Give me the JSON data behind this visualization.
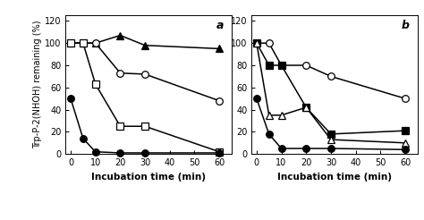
{
  "panel_a": {
    "label": "a",
    "x": [
      0,
      5,
      10,
      20,
      30,
      60
    ],
    "series": [
      {
        "marker": "^",
        "filled": true,
        "data": [
          100,
          100,
          100,
          107,
          98,
          95
        ]
      },
      {
        "marker": "o",
        "filled": false,
        "data": [
          100,
          100,
          100,
          73,
          72,
          48
        ]
      },
      {
        "marker": "s",
        "filled": false,
        "data": [
          100,
          100,
          63,
          25,
          25,
          2
        ]
      },
      {
        "marker": "o",
        "filled": true,
        "data": [
          50,
          14,
          2,
          1,
          1,
          1
        ]
      }
    ]
  },
  "panel_b": {
    "label": "b",
    "x": [
      0,
      5,
      10,
      20,
      30,
      60
    ],
    "series": [
      {
        "marker": "o",
        "filled": false,
        "data": [
          100,
          100,
          80,
          80,
          70,
          50
        ]
      },
      {
        "marker": "s",
        "filled": true,
        "data": [
          100,
          80,
          80,
          42,
          18,
          21
        ]
      },
      {
        "marker": "^",
        "filled": false,
        "data": [
          100,
          35,
          35,
          42,
          13,
          10
        ]
      },
      {
        "marker": "o",
        "filled": true,
        "data": [
          50,
          18,
          5,
          5,
          5,
          4
        ]
      }
    ]
  },
  "ylabel": "Trp-P-2(NHOH) remaining (%)",
  "xlabel": "Incubation time (min)",
  "xlim": [
    -2,
    65
  ],
  "ylim": [
    0,
    125
  ],
  "yticks": [
    0,
    20,
    40,
    60,
    80,
    100,
    120
  ],
  "xticks": [
    0,
    10,
    20,
    30,
    40,
    50,
    60
  ],
  "figsize": [
    4.74,
    2.46
  ],
  "dpi": 100,
  "linewidth": 1.1,
  "markersize": 5.5
}
